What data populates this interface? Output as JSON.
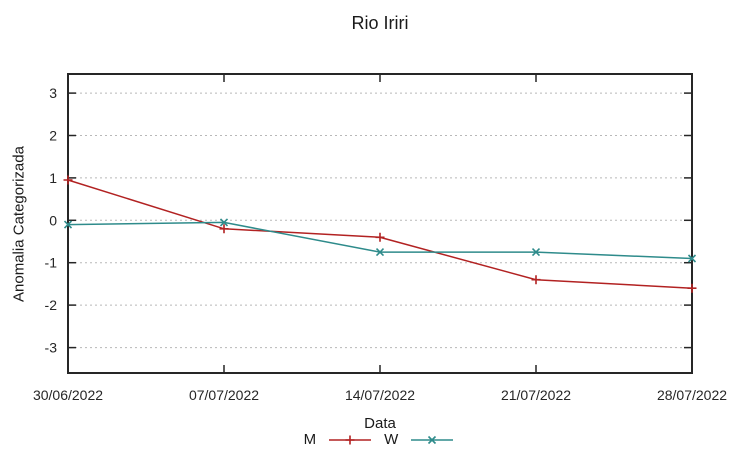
{
  "chart_data": {
    "type": "line",
    "title": "Rio Iriri",
    "xlabel": "Data",
    "ylabel": "Anomalia Categorizada",
    "categories": [
      "30/06/2022",
      "07/07/2022",
      "14/07/2022",
      "21/07/2022",
      "28/07/2022"
    ],
    "yticks": [
      3,
      2,
      1,
      0,
      -1,
      -2,
      -3
    ],
    "ylim": [
      -3.6,
      3.45
    ],
    "grid": "horizontal-dotted",
    "legend_position": "bottom-center",
    "series": [
      {
        "name": "M",
        "color": "#b22222",
        "marker": "plus",
        "values": [
          0.95,
          -0.2,
          -0.4,
          -1.4,
          -1.6
        ]
      },
      {
        "name": "W",
        "color": "#2e8b8b",
        "marker": "cross",
        "values": [
          -0.1,
          -0.05,
          -0.75,
          -0.75,
          -0.9
        ]
      }
    ]
  }
}
